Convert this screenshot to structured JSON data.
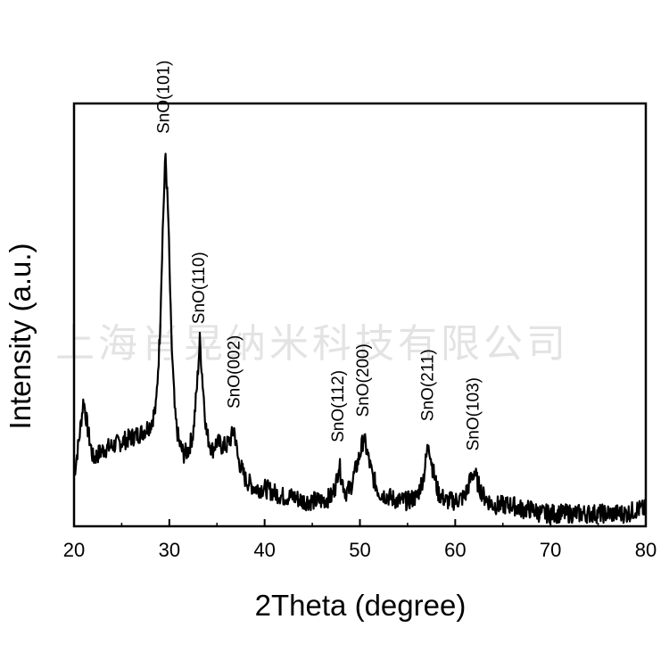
{
  "watermark": "上海肖晃纳米科技有限公司",
  "chart_data": {
    "type": "line",
    "title": "",
    "xlabel": "2Theta (degree)",
    "ylabel": "Intensity (a.u.)",
    "xlim": [
      20,
      80
    ],
    "ylim": [
      0,
      1
    ],
    "xticks": [
      20,
      30,
      40,
      50,
      60,
      70,
      80
    ],
    "yticks_shown": false,
    "grid": false,
    "legend": "none",
    "line_color": "#000000",
    "series": [
      {
        "points": [
          [
            20.0,
            0.12
          ],
          [
            20.5,
            0.2
          ],
          [
            21.0,
            0.3
          ],
          [
            21.5,
            0.22
          ],
          [
            22.0,
            0.16
          ],
          [
            23.0,
            0.18
          ],
          [
            24.0,
            0.19
          ],
          [
            25.0,
            0.2
          ],
          [
            26.0,
            0.21
          ],
          [
            27.0,
            0.22
          ],
          [
            28.0,
            0.24
          ],
          [
            28.6,
            0.28
          ],
          [
            29.0,
            0.45
          ],
          [
            29.3,
            0.7
          ],
          [
            29.6,
            0.88
          ],
          [
            29.9,
            0.72
          ],
          [
            30.2,
            0.45
          ],
          [
            30.6,
            0.26
          ],
          [
            31.0,
            0.2
          ],
          [
            31.5,
            0.17
          ],
          [
            32.0,
            0.18
          ],
          [
            32.5,
            0.22
          ],
          [
            32.9,
            0.33
          ],
          [
            33.2,
            0.44
          ],
          [
            33.5,
            0.34
          ],
          [
            33.9,
            0.22
          ],
          [
            34.5,
            0.18
          ],
          [
            35.0,
            0.2
          ],
          [
            35.5,
            0.19
          ],
          [
            36.0,
            0.19
          ],
          [
            36.5,
            0.21
          ],
          [
            36.8,
            0.23
          ],
          [
            37.2,
            0.16
          ],
          [
            38.0,
            0.11
          ],
          [
            39.0,
            0.09
          ],
          [
            40.0,
            0.09
          ],
          [
            41.0,
            0.08
          ],
          [
            42.0,
            0.07
          ],
          [
            43.0,
            0.07
          ],
          [
            44.0,
            0.06
          ],
          [
            45.0,
            0.06
          ],
          [
            46.0,
            0.06
          ],
          [
            47.0,
            0.07
          ],
          [
            47.5,
            0.1
          ],
          [
            47.8,
            0.15
          ],
          [
            48.1,
            0.11
          ],
          [
            48.5,
            0.08
          ],
          [
            49.0,
            0.09
          ],
          [
            49.5,
            0.13
          ],
          [
            50.0,
            0.17
          ],
          [
            50.4,
            0.21
          ],
          [
            50.8,
            0.17
          ],
          [
            51.3,
            0.12
          ],
          [
            52.0,
            0.08
          ],
          [
            53.0,
            0.07
          ],
          [
            54.0,
            0.06
          ],
          [
            55.0,
            0.06
          ],
          [
            56.0,
            0.07
          ],
          [
            56.7,
            0.12
          ],
          [
            57.2,
            0.2
          ],
          [
            57.6,
            0.14
          ],
          [
            58.2,
            0.08
          ],
          [
            59.0,
            0.06
          ],
          [
            60.0,
            0.06
          ],
          [
            61.0,
            0.07
          ],
          [
            61.6,
            0.11
          ],
          [
            62.0,
            0.13
          ],
          [
            62.4,
            0.1
          ],
          [
            63.0,
            0.07
          ],
          [
            64.0,
            0.05
          ],
          [
            65.0,
            0.05
          ],
          [
            66.0,
            0.05
          ],
          [
            67.0,
            0.04
          ],
          [
            68.0,
            0.04
          ],
          [
            69.0,
            0.03
          ],
          [
            70.0,
            0.03
          ],
          [
            71.0,
            0.03
          ],
          [
            72.0,
            0.03
          ],
          [
            73.0,
            0.03
          ],
          [
            74.0,
            0.03
          ],
          [
            75.0,
            0.03
          ],
          [
            76.0,
            0.03
          ],
          [
            77.0,
            0.03
          ],
          [
            78.0,
            0.03
          ],
          [
            79.0,
            0.04
          ],
          [
            80.0,
            0.04
          ]
        ]
      }
    ],
    "annotations": [
      {
        "text": "SnO(101)",
        "x": 29.5,
        "y": 0.92
      },
      {
        "text": "SnO(110)",
        "x": 33.2,
        "y": 0.47
      },
      {
        "text": "SnO(002)",
        "x": 36.9,
        "y": 0.27
      },
      {
        "text": "SnO(112)",
        "x": 47.8,
        "y": 0.19
      },
      {
        "text": "SnO(200)",
        "x": 50.4,
        "y": 0.25
      },
      {
        "text": "SnO(211)",
        "x": 57.2,
        "y": 0.24
      },
      {
        "text": "SnO(103)",
        "x": 62.0,
        "y": 0.17
      }
    ]
  }
}
